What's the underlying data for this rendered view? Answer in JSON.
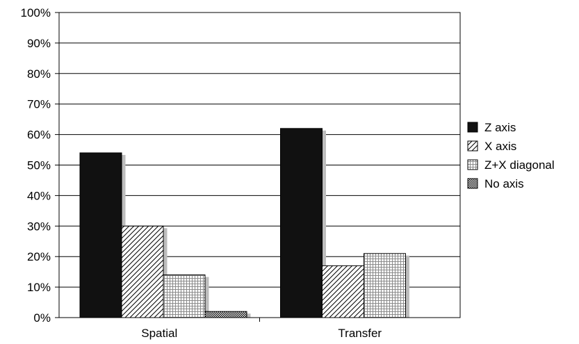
{
  "chart_data": {
    "type": "bar",
    "categories": [
      "Spatial",
      "Transfer"
    ],
    "series": [
      {
        "name": "Z axis",
        "values": [
          54,
          62
        ],
        "pattern": "solid"
      },
      {
        "name": "X axis",
        "values": [
          30,
          17
        ],
        "pattern": "diagonal"
      },
      {
        "name": "Z+X diagonal",
        "values": [
          14,
          21
        ],
        "pattern": "grid"
      },
      {
        "name": "No axis",
        "values": [
          2,
          null
        ],
        "pattern": "dense-check"
      }
    ],
    "ylim": [
      0,
      100
    ],
    "yticks": [
      "0%",
      "10%",
      "20%",
      "30%",
      "40%",
      "50%",
      "60%",
      "70%",
      "80%",
      "90%",
      "100%"
    ],
    "grid": "horizontal",
    "legend": "right",
    "bar_color": "#111111",
    "shadow_color": "#bdbdbd"
  }
}
